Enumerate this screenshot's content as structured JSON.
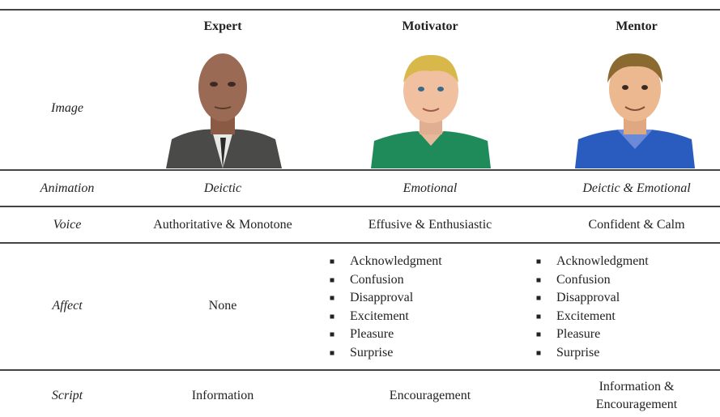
{
  "table": {
    "columns": [
      "Expert",
      "Motivator",
      "Mentor"
    ],
    "rows": [
      {
        "label": "Image"
      },
      {
        "label": "Animation",
        "cells": [
          "Deictic",
          "Emotional",
          "Deictic & Emotional"
        ]
      },
      {
        "label": "Voice",
        "cells": [
          "Authoritative & Monotone",
          "Effusive & Enthusiastic",
          "Confident & Calm"
        ]
      },
      {
        "label": "Affect",
        "cells": [
          "None",
          [
            "Acknowledgment",
            "Confusion",
            "Disapproval",
            "Excitement",
            "Pleasure",
            "Surprise"
          ],
          [
            "Acknowledgment",
            "Confusion",
            "Disapproval",
            "Excitement",
            "Pleasure",
            "Surprise"
          ]
        ]
      },
      {
        "label": "Script",
        "cells": [
          "Information",
          "Encouragement",
          [
            "Information &",
            "Encouragement"
          ]
        ]
      }
    ]
  }
}
